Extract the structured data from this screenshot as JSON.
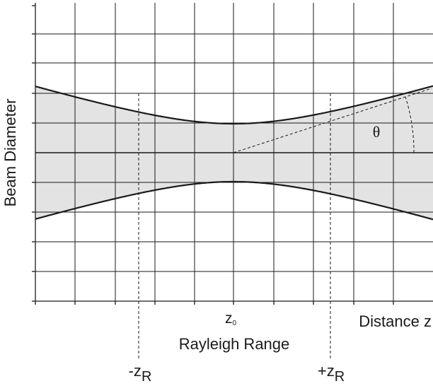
{
  "diagram": {
    "ylabel": "Beam Diameter",
    "xlabel": "Distance z",
    "waist_label": "z",
    "waist_sub": "0",
    "range_label": "Rayleigh Range",
    "neg_zr_prefix": "-z",
    "pos_zr_prefix": "+z",
    "zr_sub": "R",
    "angle_label": "θ",
    "colors": {
      "beam_fill": "#e3e3e3",
      "line": "#1a1a1a",
      "grid": "#1a1a1a"
    }
  }
}
